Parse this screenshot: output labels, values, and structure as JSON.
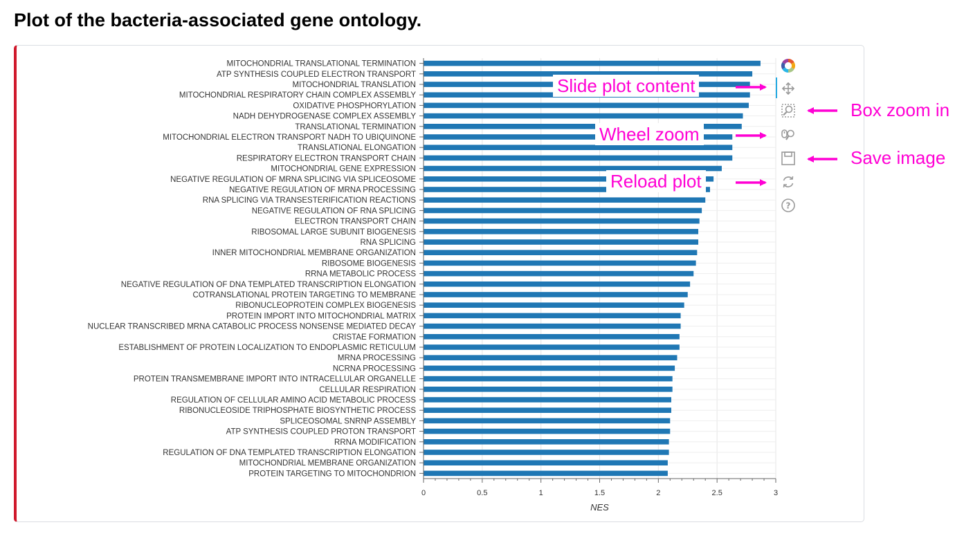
{
  "page": {
    "title": "Plot of the bacteria-associated gene ontology."
  },
  "chart_data": {
    "type": "bar",
    "orientation": "horizontal",
    "title": "",
    "xlabel": "NES",
    "ylabel": "",
    "xlim": [
      0,
      3
    ],
    "xticks": [
      "0",
      "0.5",
      "1",
      "1.5",
      "2",
      "2.5",
      "3"
    ],
    "grid": true,
    "color": "#1f77b4",
    "categories": [
      "MITOCHONDRIAL TRANSLATIONAL TERMINATION",
      "ATP SYNTHESIS COUPLED ELECTRON TRANSPORT",
      "MITOCHONDRIAL TRANSLATION",
      "MITOCHONDRIAL RESPIRATORY CHAIN COMPLEX ASSEMBLY",
      "OXIDATIVE PHOSPHORYLATION",
      "NADH DEHYDROGENASE COMPLEX ASSEMBLY",
      "TRANSLATIONAL TERMINATION",
      "MITOCHONDRIAL ELECTRON TRANSPORT NADH TO UBIQUINONE",
      "TRANSLATIONAL ELONGATION",
      "RESPIRATORY ELECTRON TRANSPORT CHAIN",
      "MITOCHONDRIAL GENE EXPRESSION",
      "NEGATIVE REGULATION OF MRNA SPLICING VIA SPLICEOSOME",
      "NEGATIVE REGULATION OF MRNA PROCESSING",
      "RNA SPLICING VIA TRANSESTERIFICATION REACTIONS",
      "NEGATIVE REGULATION OF RNA SPLICING",
      "ELECTRON TRANSPORT CHAIN",
      "RIBOSOMAL LARGE SUBUNIT BIOGENESIS",
      "RNA SPLICING",
      "INNER MITOCHONDRIAL MEMBRANE ORGANIZATION",
      "RIBOSOME BIOGENESIS",
      "RRNA METABOLIC PROCESS",
      "NEGATIVE REGULATION OF DNA TEMPLATED TRANSCRIPTION ELONGATION",
      "COTRANSLATIONAL PROTEIN TARGETING TO MEMBRANE",
      "RIBONUCLEOPROTEIN COMPLEX BIOGENESIS",
      "PROTEIN IMPORT INTO MITOCHONDRIAL MATRIX",
      "NUCLEAR TRANSCRIBED MRNA CATABOLIC PROCESS NONSENSE MEDIATED DECAY",
      "CRISTAE FORMATION",
      "ESTABLISHMENT OF PROTEIN LOCALIZATION TO ENDOPLASMIC RETICULUM",
      "MRNA PROCESSING",
      "NCRNA PROCESSING",
      "PROTEIN TRANSMEMBRANE IMPORT INTO INTRACELLULAR ORGANELLE",
      "CELLULAR RESPIRATION",
      "REGULATION OF CELLULAR AMINO ACID METABOLIC PROCESS",
      "RIBONUCLEOSIDE TRIPHOSPHATE BIOSYNTHETIC PROCESS",
      "SPLICEOSOMAL SNRNP ASSEMBLY",
      "ATP SYNTHESIS COUPLED PROTON TRANSPORT",
      "RRNA MODIFICATION",
      "REGULATION OF DNA TEMPLATED TRANSCRIPTION ELONGATION",
      "MITOCHONDRIAL MEMBRANE ORGANIZATION",
      "PROTEIN TARGETING TO MITOCHONDRION"
    ],
    "values": [
      2.87,
      2.8,
      2.78,
      2.78,
      2.77,
      2.72,
      2.71,
      2.63,
      2.63,
      2.63,
      2.54,
      2.47,
      2.44,
      2.4,
      2.37,
      2.35,
      2.34,
      2.34,
      2.33,
      2.32,
      2.3,
      2.27,
      2.25,
      2.22,
      2.19,
      2.19,
      2.18,
      2.18,
      2.16,
      2.14,
      2.12,
      2.12,
      2.11,
      2.11,
      2.1,
      2.1,
      2.09,
      2.09,
      2.08,
      2.08
    ]
  },
  "toolbar": {
    "tools": [
      {
        "name": "bokeh-logo-icon",
        "interactable": true
      },
      {
        "name": "pan-tool-icon",
        "interactable": true
      },
      {
        "name": "box-zoom-tool-icon",
        "interactable": true
      },
      {
        "name": "wheel-zoom-tool-icon",
        "interactable": true
      },
      {
        "name": "save-tool-icon",
        "interactable": true
      },
      {
        "name": "reset-tool-icon",
        "interactable": true
      },
      {
        "name": "help-tool-icon",
        "interactable": true
      }
    ]
  },
  "annotations": {
    "slide": "Slide plot content",
    "wheel": "Wheel zoom",
    "reload": "Reload plot",
    "box_zoom": "Box zoom in",
    "save": "Save image",
    "color": "#ff00d4"
  }
}
